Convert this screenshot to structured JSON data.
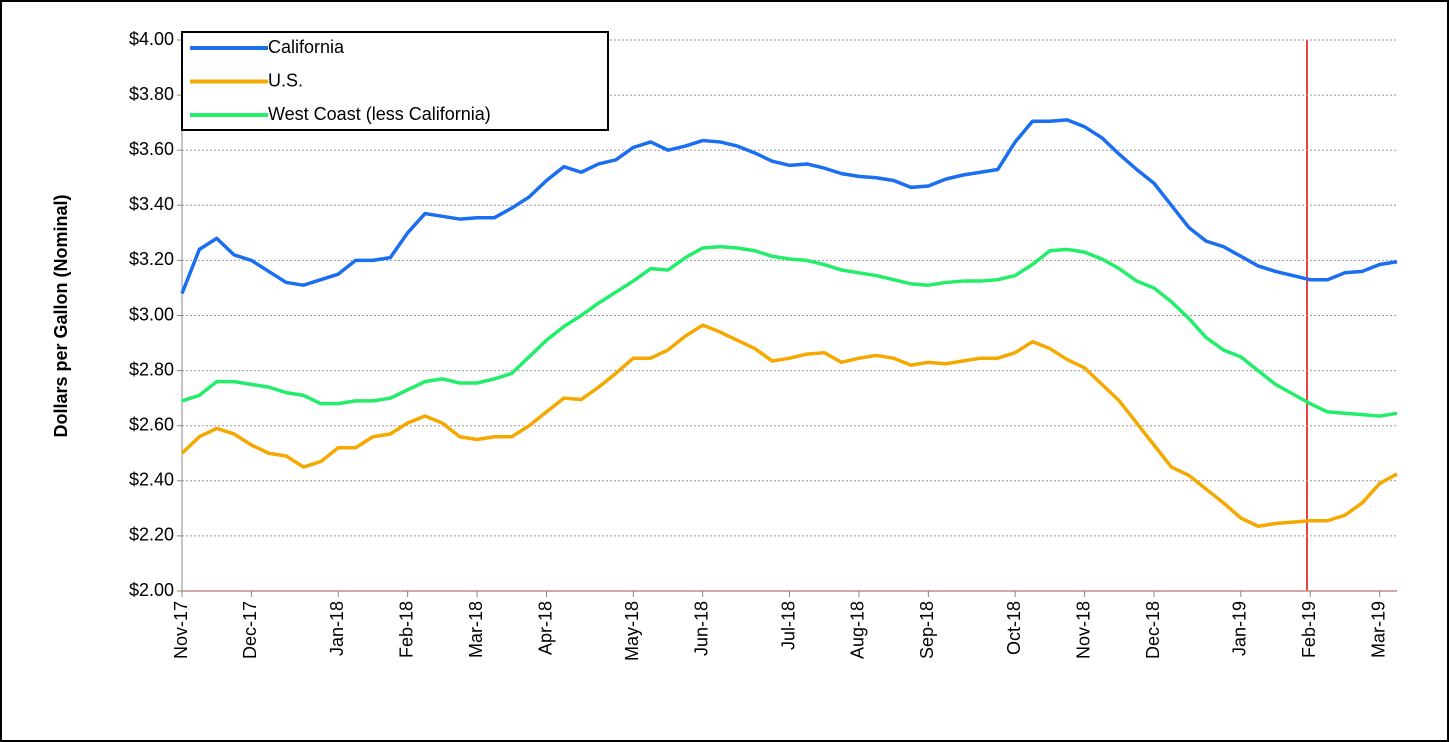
{
  "chart_data": {
    "type": "line",
    "y_label": "Dollars per Gallon (Nominal)",
    "legend": "upper left",
    "grid": true,
    "ylim": [
      2,
      4
    ],
    "yticks": [
      {
        "value": 2,
        "label": "$2.00"
      },
      {
        "value": 2.2,
        "label": "$2.20"
      },
      {
        "value": 2.4,
        "label": "$2.40"
      },
      {
        "value": 2.6,
        "label": "$2.60"
      },
      {
        "value": 2.8,
        "label": "$2.80"
      },
      {
        "value": 3,
        "label": "$3.00"
      },
      {
        "value": 3.2,
        "label": "$3.20"
      },
      {
        "value": 3.4,
        "label": "$3.40"
      },
      {
        "value": 3.6,
        "label": "$3.60"
      },
      {
        "value": 3.8,
        "label": "$3.80"
      },
      {
        "value": 4,
        "label": "$4.00"
      }
    ],
    "categories": [
      "Nov-17",
      null,
      null,
      null,
      "Dec-17",
      null,
      null,
      null,
      null,
      "Jan-18",
      null,
      null,
      null,
      "Feb-18",
      null,
      null,
      null,
      "Mar-18",
      null,
      null,
      null,
      "Apr-18",
      null,
      null,
      null,
      null,
      "May-18",
      null,
      null,
      null,
      "Jun-18",
      null,
      null,
      null,
      null,
      "Jul-18",
      null,
      null,
      null,
      "Aug-18",
      null,
      null,
      null,
      "Sep-18",
      null,
      null,
      null,
      null,
      "Oct-18",
      null,
      null,
      null,
      "Nov-18",
      null,
      null,
      null,
      "Dec-18",
      null,
      null,
      null,
      null,
      "Jan-19",
      null,
      null,
      null,
      "Feb-19",
      null,
      null,
      null,
      "Mar-19",
      null
    ],
    "series": [
      {
        "name": "California",
        "color": "#1a6ef0",
        "values": [
          3.08,
          3.24,
          3.28,
          3.22,
          3.2,
          3.16,
          3.12,
          3.11,
          3.13,
          3.15,
          3.2,
          3.2,
          3.21,
          3.3,
          3.37,
          3.36,
          3.35,
          3.355,
          3.355,
          3.39,
          3.43,
          3.49,
          3.54,
          3.52,
          3.55,
          3.565,
          3.61,
          3.63,
          3.6,
          3.615,
          3.635,
          3.63,
          3.615,
          3.59,
          3.56,
          3.545,
          3.55,
          3.535,
          3.515,
          3.505,
          3.5,
          3.49,
          3.465,
          3.47,
          3.495,
          3.51,
          3.52,
          3.53,
          3.63,
          3.705,
          3.705,
          3.71,
          3.685,
          3.645,
          3.585,
          3.53,
          3.48,
          3.4,
          3.32,
          3.27,
          3.25,
          3.215,
          3.18,
          3.16,
          3.145,
          3.13,
          3.13,
          3.155,
          3.16,
          3.185,
          3.195
        ]
      },
      {
        "name": "U.S.",
        "color": "#f5a800",
        "values": [
          2.5,
          2.56,
          2.59,
          2.57,
          2.53,
          2.5,
          2.49,
          2.45,
          2.47,
          2.52,
          2.52,
          2.56,
          2.57,
          2.61,
          2.635,
          2.61,
          2.56,
          2.55,
          2.56,
          2.56,
          2.6,
          2.65,
          2.7,
          2.695,
          2.74,
          2.79,
          2.845,
          2.845,
          2.875,
          2.925,
          2.965,
          2.94,
          2.91,
          2.88,
          2.835,
          2.845,
          2.86,
          2.865,
          2.83,
          2.845,
          2.855,
          2.845,
          2.82,
          2.83,
          2.825,
          2.835,
          2.845,
          2.845,
          2.865,
          2.905,
          2.88,
          2.84,
          2.81,
          2.75,
          2.69,
          2.61,
          2.53,
          2.45,
          2.42,
          2.37,
          2.32,
          2.265,
          2.235,
          2.245,
          2.25,
          2.255,
          2.255,
          2.275,
          2.32,
          2.39,
          2.425
        ]
      },
      {
        "name": "West Coast (less California)",
        "color": "#22ee6a",
        "values": [
          2.69,
          2.71,
          2.76,
          2.76,
          2.75,
          2.74,
          2.72,
          2.71,
          2.68,
          2.68,
          2.69,
          2.69,
          2.7,
          2.73,
          2.76,
          2.77,
          2.755,
          2.755,
          2.77,
          2.79,
          2.85,
          2.91,
          2.96,
          3.0,
          3.045,
          3.085,
          3.125,
          3.17,
          3.165,
          3.21,
          3.245,
          3.25,
          3.245,
          3.235,
          3.215,
          3.205,
          3.2,
          3.185,
          3.165,
          3.155,
          3.145,
          3.13,
          3.115,
          3.11,
          3.12,
          3.125,
          3.125,
          3.13,
          3.145,
          3.185,
          3.235,
          3.24,
          3.23,
          3.205,
          3.17,
          3.125,
          3.1,
          3.05,
          2.99,
          2.92,
          2.875,
          2.85,
          2.8,
          2.75,
          2.715,
          2.68,
          2.65,
          2.645,
          2.64,
          2.635,
          2.645
        ]
      }
    ]
  }
}
